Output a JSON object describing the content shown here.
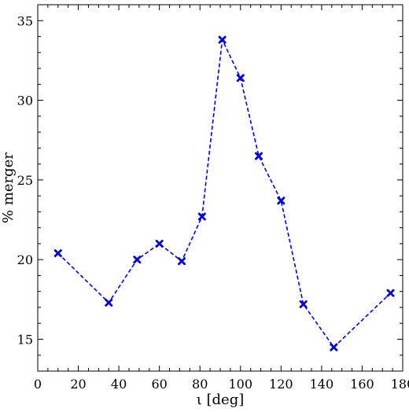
{
  "chart_data": {
    "type": "line",
    "title": "",
    "xlabel": "ι [deg]",
    "ylabel": "% merger",
    "xlim": [
      0,
      180
    ],
    "ylim": [
      13,
      36
    ],
    "x_ticks": [
      0,
      20,
      40,
      60,
      80,
      100,
      120,
      140,
      160,
      180
    ],
    "y_ticks": [
      15,
      20,
      25,
      30,
      35
    ],
    "grid": false,
    "legend": "none",
    "series": [
      {
        "x": [
          10,
          35,
          49,
          60,
          71,
          81,
          91,
          100,
          109,
          120,
          131,
          146,
          174
        ],
        "y": [
          20.4,
          17.3,
          20.0,
          21.0,
          19.9,
          22.7,
          33.8,
          31.4,
          26.5,
          23.7,
          17.2,
          14.5,
          17.9
        ],
        "color": "#0000dd",
        "line_style": "dashed",
        "marker": "x"
      }
    ]
  }
}
